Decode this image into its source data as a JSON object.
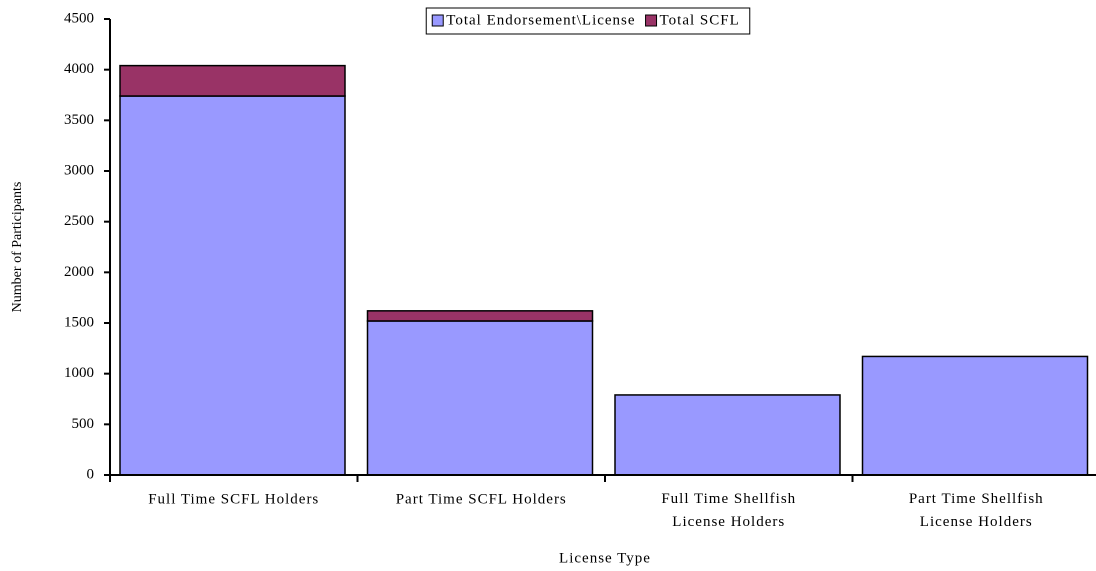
{
  "chart_data": {
    "type": "stacked_bar",
    "x_label": "License Type",
    "y_label": "Number of Participants",
    "categories": [
      "Full Time SCFL Holders",
      "Part Time SCFL Holders",
      "Full Time Shellfish License Holders",
      "Part Time Shellfish License Holders"
    ],
    "series": [
      {
        "name": "Total Endorsement\\License",
        "color": "#9999ff",
        "values": [
          3740,
          1520,
          790,
          1170
        ]
      },
      {
        "name": "Total SCFL",
        "color": "#993366",
        "values": [
          300,
          100,
          0,
          0
        ]
      }
    ],
    "ylim": [
      0,
      4500
    ],
    "yticks": [
      0,
      500,
      1000,
      1500,
      2000,
      2500,
      3000,
      3500,
      4000,
      4500
    ],
    "legend": "top"
  }
}
